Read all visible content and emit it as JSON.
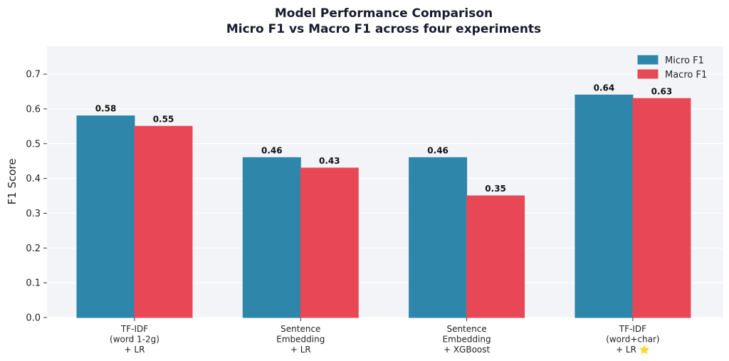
{
  "chart_data": {
    "type": "bar",
    "title": "Model Performance Comparison",
    "subtitle": "Micro F1 vs Macro F1 across four experiments",
    "ylabel": "F1 Score",
    "xlabel": "",
    "ylim": [
      0,
      0.78
    ],
    "yticks": [
      "0.0",
      "0.1",
      "0.2",
      "0.3",
      "0.4",
      "0.5",
      "0.6",
      "0.7"
    ],
    "categories": [
      [
        "TF-IDF",
        "(word 1-2g)",
        "+ LR"
      ],
      [
        "Sentence",
        "Embedding",
        "+ LR"
      ],
      [
        "Sentence",
        "Embedding",
        "+ XGBoost"
      ],
      [
        "TF-IDF",
        "(word+char)",
        "+ LR ⭐"
      ]
    ],
    "series": [
      {
        "name": "Micro F1",
        "color": "#2e86ab",
        "values": [
          0.58,
          0.46,
          0.46,
          0.64
        ],
        "labels": [
          "0.58",
          "0.46",
          "0.46",
          "0.64"
        ]
      },
      {
        "name": "Macro F1",
        "color": "#e84855",
        "values": [
          0.55,
          0.43,
          0.35,
          0.63
        ],
        "labels": [
          "0.55",
          "0.43",
          "0.35",
          "0.63"
        ]
      }
    ],
    "grid": true,
    "legend": "top-right",
    "plot_background": "#f3f4f8"
  }
}
